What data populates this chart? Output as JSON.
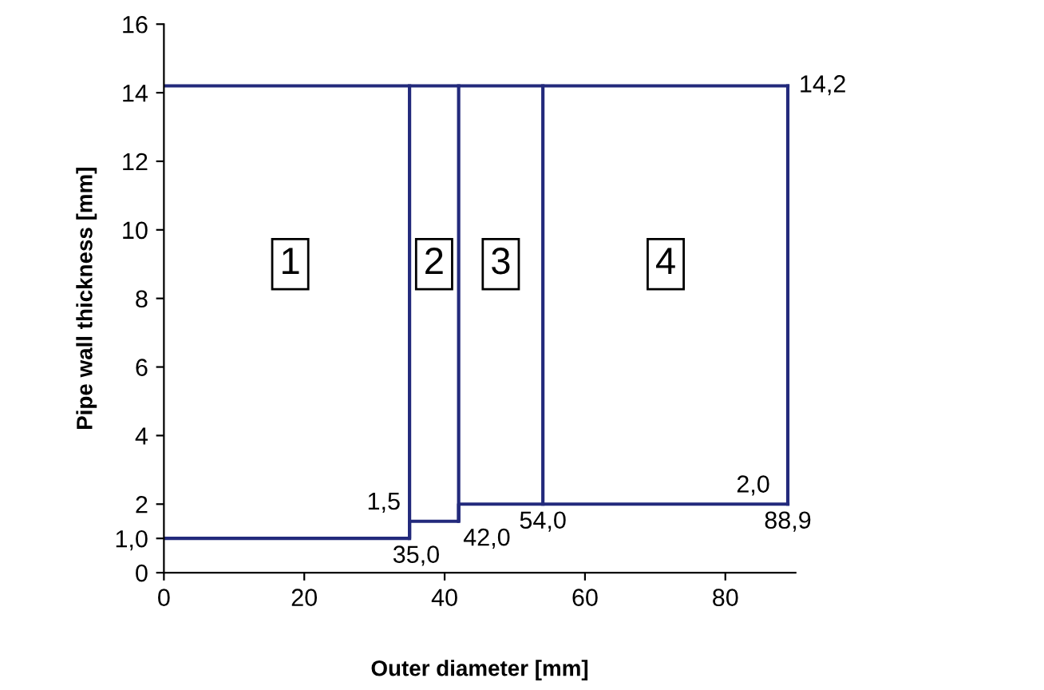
{
  "chart_data": {
    "type": "line",
    "xlabel": "Outer diameter [mm]",
    "ylabel": "Pipe wall thickness [mm]",
    "series": [
      {
        "type": "step",
        "color": "#232a7c",
        "x": [
          0,
          35,
          42,
          54,
          88.9
        ],
        "values": [
          1.0,
          1.5,
          2.0,
          2.0,
          2.0
        ]
      },
      {
        "color": "#232a7c",
        "x": [
          0,
          88.9
        ],
        "values": [
          14.2,
          14.2
        ]
      },
      {
        "color": "#232a7c",
        "x": [
          35,
          35
        ],
        "values": [
          1.0,
          14.2
        ]
      },
      {
        "color": "#232a7c",
        "x": [
          42,
          42
        ],
        "values": [
          1.5,
          14.2
        ]
      },
      {
        "color": "#232a7c",
        "x": [
          54,
          54
        ],
        "values": [
          2.0,
          14.2
        ]
      },
      {
        "color": "#232a7c",
        "x": [
          88.9,
          88.9
        ],
        "values": [
          2.0,
          14.2
        ]
      }
    ],
    "annotations": [
      {
        "text": "1",
        "x": 18,
        "y": 9
      },
      {
        "text": "2",
        "x": 38.5,
        "y": 9
      },
      {
        "text": "3",
        "x": 48,
        "y": 9
      },
      {
        "text": "4",
        "x": 71.5,
        "y": 9
      },
      {
        "text": "14,2",
        "x": 88.9,
        "y": 14.2
      },
      {
        "text": "1,5",
        "x": 35,
        "y": 1.5
      },
      {
        "text": "35,0",
        "x": 35,
        "y": 1.0
      },
      {
        "text": "42,0",
        "x": 42,
        "y": 1.5
      },
      {
        "text": "54,0",
        "x": 54,
        "y": 2.0
      },
      {
        "text": "88,9",
        "x": 88.9,
        "y": 2.0
      },
      {
        "text": "2,0",
        "x": 88.9,
        "y": 2.0
      }
    ],
    "xlim": [
      0,
      90
    ],
    "ylim": [
      0,
      16
    ],
    "xticks": [
      0,
      20,
      40,
      60,
      80
    ],
    "yticks": [
      0,
      {
        "value": 1,
        "label": "1,0"
      },
      2,
      4,
      6,
      8,
      10,
      12,
      14,
      16
    ],
    "grid": false,
    "legend": false
  }
}
